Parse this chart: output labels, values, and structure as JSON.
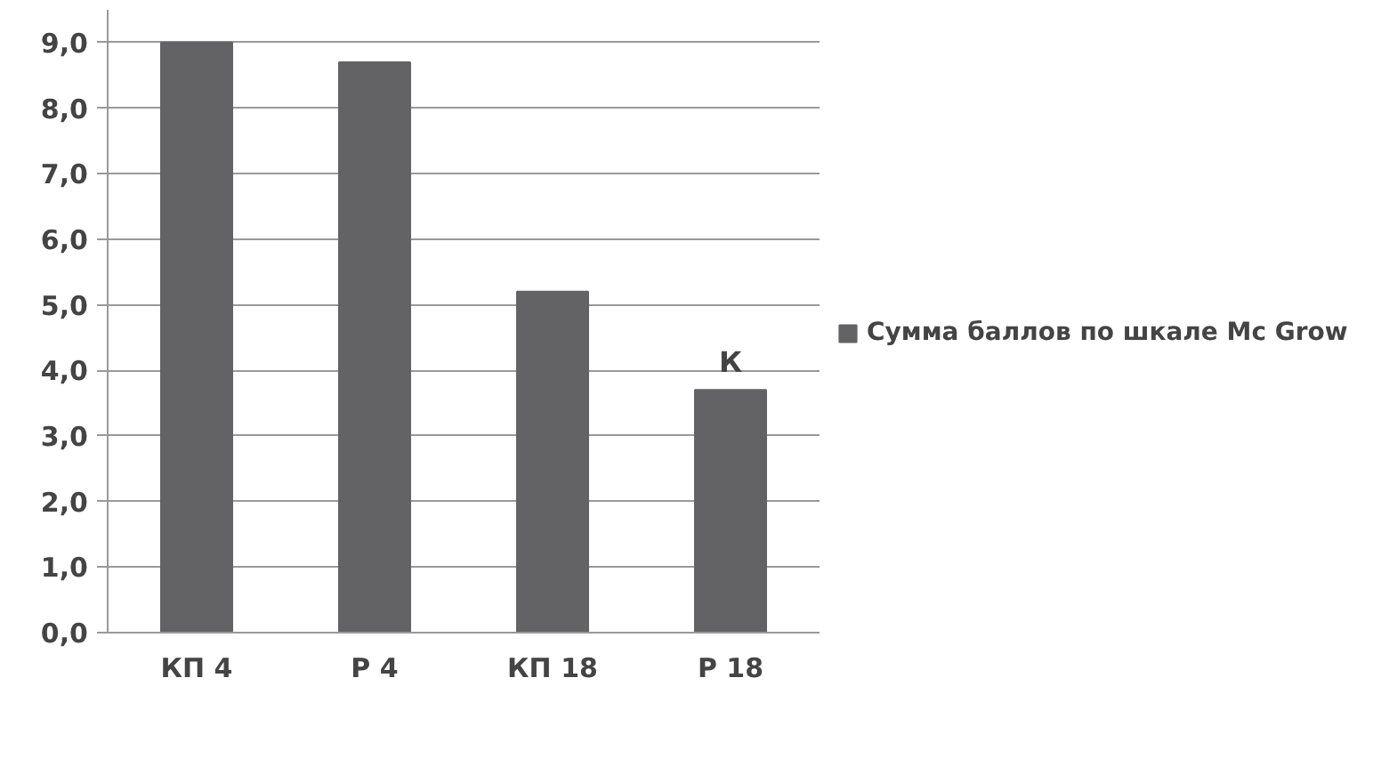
{
  "chart_data": {
    "type": "bar",
    "categories": [
      "КП 4",
      "Р 4",
      "КП 18",
      "Р 18"
    ],
    "series": [
      {
        "name": "Сумма баллов по шкале Mc Grow",
        "color": "#636365",
        "values": [
          9.0,
          8.7,
          5.2,
          3.7
        ]
      }
    ],
    "ylim": [
      0,
      9.5
    ],
    "yticks": [
      {
        "value": 0,
        "label": "0,0"
      },
      {
        "value": 1,
        "label": "1,0"
      },
      {
        "value": 2,
        "label": "2,0"
      },
      {
        "value": 3,
        "label": "3,0"
      },
      {
        "value": 4,
        "label": "4,0"
      },
      {
        "value": 5,
        "label": "5,0"
      },
      {
        "value": 6,
        "label": "6,0"
      },
      {
        "value": 7,
        "label": "7,0"
      },
      {
        "value": 8,
        "label": "8,0"
      },
      {
        "value": 9,
        "label": "9,0"
      }
    ],
    "annotations": [
      {
        "text": "К",
        "x": "Р 18",
        "y": 3.7
      }
    ],
    "grid": "y",
    "legend": "right"
  }
}
